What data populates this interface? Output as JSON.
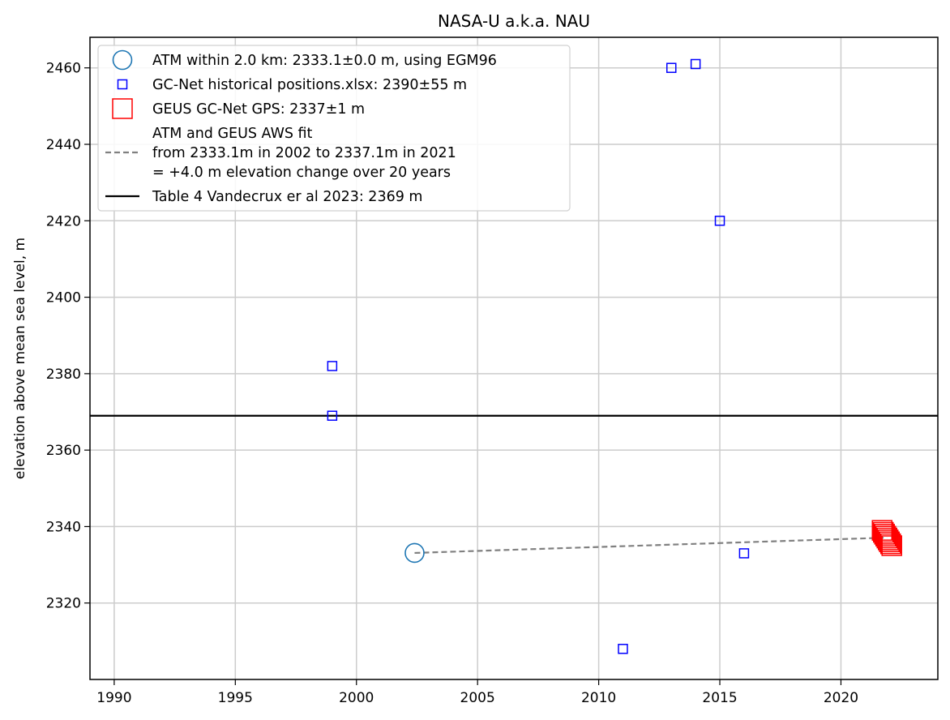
{
  "chart_data": {
    "type": "scatter",
    "title": "NASA-U a.k.a. NAU",
    "xlabel": "",
    "ylabel": "elevation above mean sea level, m",
    "xlim": [
      1989,
      2024
    ],
    "ylim": [
      2300,
      2468
    ],
    "xticks": [
      1990,
      1995,
      2000,
      2005,
      2010,
      2015,
      2020
    ],
    "yticks": [
      2320,
      2340,
      2360,
      2380,
      2400,
      2420,
      2440,
      2460
    ],
    "grid": true,
    "legend_position": "top-left",
    "colors": {
      "atm": "#1f77b4",
      "historical": "#0000ff",
      "gps": "#ff0000",
      "fit": "#808080",
      "table": "#000000"
    },
    "series": [
      {
        "key": "atm",
        "name": "ATM within 2.0 km: 2333.1±0.0 m, using EGM96",
        "marker": "circle",
        "points": [
          {
            "x": 2002.4,
            "y": 2333.1
          }
        ]
      },
      {
        "key": "historical",
        "name": "GC-Net historical positions.xlsx: 2390±55 m",
        "marker": "square-small",
        "points": [
          {
            "x": 1999,
            "y": 2382
          },
          {
            "x": 1999,
            "y": 2369
          },
          {
            "x": 2011,
            "y": 2308
          },
          {
            "x": 2013,
            "y": 2460
          },
          {
            "x": 2014,
            "y": 2461
          },
          {
            "x": 2015,
            "y": 2420
          },
          {
            "x": 2016,
            "y": 2333
          }
        ]
      },
      {
        "key": "gps",
        "name": "GEUS GC-Net GPS: 2337±1 m",
        "marker": "square-large",
        "points": [
          {
            "x": 2021.7,
            "y": 2339
          },
          {
            "x": 2021.75,
            "y": 2338.5
          },
          {
            "x": 2021.8,
            "y": 2338
          },
          {
            "x": 2021.85,
            "y": 2337.5
          },
          {
            "x": 2021.9,
            "y": 2337
          },
          {
            "x": 2021.95,
            "y": 2336.5
          },
          {
            "x": 2022.0,
            "y": 2336
          },
          {
            "x": 2022.05,
            "y": 2335.5
          },
          {
            "x": 2022.1,
            "y": 2335
          }
        ]
      },
      {
        "key": "fit",
        "name": "ATM and GEUS AWS fit\nfrom 2333.1m in 2002 to 2337.1m in 2021\n= +4.0 m elevation change over 20 years",
        "marker": "dashed-line",
        "points": [
          {
            "x": 2002.4,
            "y": 2333.1
          },
          {
            "x": 2021.9,
            "y": 2337.1
          }
        ]
      },
      {
        "key": "table",
        "name": "Table 4 Vandecrux er al 2023: 2369 m",
        "marker": "hline",
        "y": 2369
      }
    ]
  }
}
